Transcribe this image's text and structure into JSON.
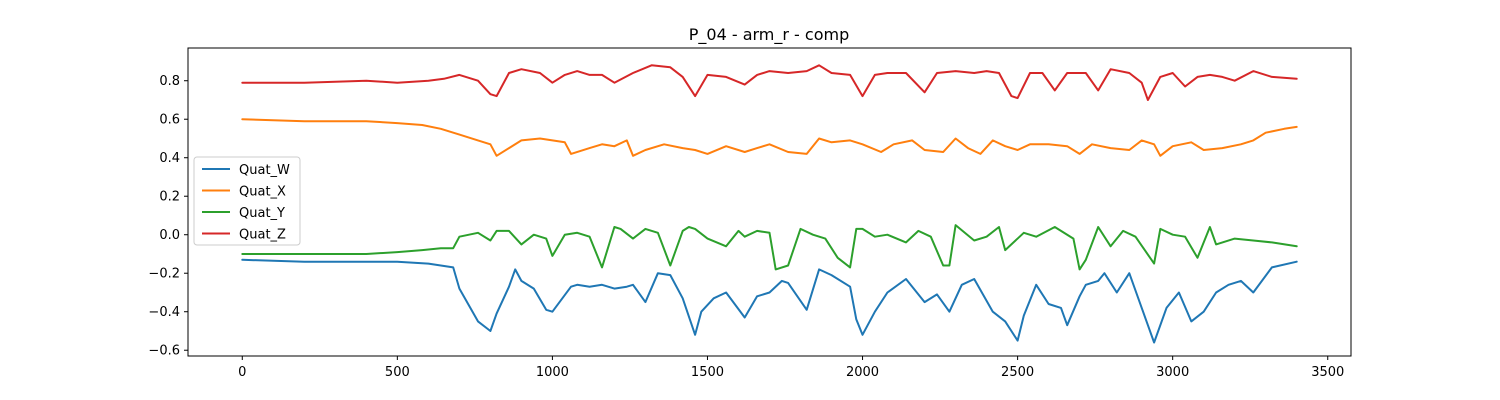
{
  "chart_data": {
    "type": "line",
    "title": "P_04 - arm_r - comp",
    "xlabel": "",
    "ylabel": "",
    "xlim": [
      -175,
      3575
    ],
    "ylim": [
      -0.63,
      0.97
    ],
    "x_ticks": [
      0,
      500,
      1000,
      1500,
      2000,
      2500,
      3000,
      3500
    ],
    "y_ticks": [
      -0.6,
      -0.4,
      -0.2,
      0.0,
      0.2,
      0.4,
      0.6,
      0.8
    ],
    "x_tick_labels": [
      "0",
      "500",
      "1000",
      "1500",
      "2000",
      "2500",
      "3000",
      "3500"
    ],
    "y_tick_labels": [
      "−0.6",
      "−0.4",
      "−0.2",
      "0.0",
      "0.2",
      "0.4",
      "0.6",
      "0.8"
    ],
    "grid": false,
    "legend_position": "center-left",
    "series": [
      {
        "name": "Quat_W",
        "color": "#1f77b4",
        "x": [
          0,
          200,
          400,
          500,
          600,
          680,
          700,
          760,
          800,
          820,
          860,
          880,
          900,
          940,
          980,
          1000,
          1060,
          1080,
          1120,
          1160,
          1200,
          1240,
          1260,
          1300,
          1340,
          1380,
          1420,
          1460,
          1480,
          1520,
          1560,
          1620,
          1660,
          1700,
          1740,
          1760,
          1820,
          1860,
          1900,
          1960,
          1980,
          2000,
          2040,
          2080,
          2140,
          2200,
          2240,
          2280,
          2320,
          2360,
          2420,
          2460,
          2500,
          2520,
          2560,
          2600,
          2640,
          2660,
          2700,
          2720,
          2760,
          2780,
          2820,
          2860,
          2920,
          2940,
          2980,
          3020,
          3060,
          3100,
          3140,
          3180,
          3220,
          3260,
          3320,
          3400
        ],
        "y": [
          -0.13,
          -0.14,
          -0.14,
          -0.14,
          -0.15,
          -0.17,
          -0.28,
          -0.45,
          -0.5,
          -0.41,
          -0.27,
          -0.18,
          -0.24,
          -0.28,
          -0.39,
          -0.4,
          -0.27,
          -0.26,
          -0.27,
          -0.26,
          -0.28,
          -0.27,
          -0.26,
          -0.35,
          -0.2,
          -0.21,
          -0.33,
          -0.52,
          -0.4,
          -0.33,
          -0.3,
          -0.43,
          -0.32,
          -0.3,
          -0.24,
          -0.25,
          -0.39,
          -0.18,
          -0.21,
          -0.27,
          -0.44,
          -0.52,
          -0.4,
          -0.3,
          -0.23,
          -0.35,
          -0.31,
          -0.4,
          -0.26,
          -0.23,
          -0.4,
          -0.45,
          -0.55,
          -0.42,
          -0.26,
          -0.36,
          -0.38,
          -0.47,
          -0.32,
          -0.26,
          -0.24,
          -0.2,
          -0.3,
          -0.2,
          -0.47,
          -0.56,
          -0.38,
          -0.3,
          -0.45,
          -0.4,
          -0.3,
          -0.26,
          -0.24,
          -0.3,
          -0.17,
          -0.14
        ]
      },
      {
        "name": "Quat_X",
        "color": "#ff7f0e",
        "x": [
          0,
          200,
          400,
          500,
          580,
          640,
          700,
          760,
          800,
          820,
          860,
          900,
          960,
          1000,
          1040,
          1060,
          1120,
          1160,
          1200,
          1240,
          1260,
          1300,
          1360,
          1420,
          1460,
          1500,
          1560,
          1620,
          1660,
          1700,
          1760,
          1820,
          1860,
          1900,
          1960,
          2000,
          2060,
          2100,
          2160,
          2200,
          2260,
          2300,
          2340,
          2380,
          2420,
          2460,
          2500,
          2540,
          2600,
          2660,
          2700,
          2740,
          2800,
          2860,
          2900,
          2940,
          2960,
          3000,
          3060,
          3100,
          3160,
          3220,
          3260,
          3300,
          3360,
          3400
        ],
        "y": [
          0.6,
          0.59,
          0.59,
          0.58,
          0.57,
          0.55,
          0.52,
          0.49,
          0.47,
          0.41,
          0.45,
          0.49,
          0.5,
          0.49,
          0.48,
          0.42,
          0.45,
          0.47,
          0.46,
          0.49,
          0.41,
          0.44,
          0.47,
          0.45,
          0.44,
          0.42,
          0.46,
          0.43,
          0.45,
          0.47,
          0.43,
          0.42,
          0.5,
          0.48,
          0.49,
          0.47,
          0.43,
          0.47,
          0.49,
          0.44,
          0.43,
          0.5,
          0.45,
          0.42,
          0.49,
          0.46,
          0.44,
          0.47,
          0.47,
          0.46,
          0.42,
          0.47,
          0.45,
          0.44,
          0.49,
          0.47,
          0.41,
          0.46,
          0.48,
          0.44,
          0.45,
          0.47,
          0.49,
          0.53,
          0.55,
          0.56
        ]
      },
      {
        "name": "Quat_Y",
        "color": "#2ca02c",
        "x": [
          0,
          200,
          400,
          500,
          580,
          640,
          680,
          700,
          760,
          800,
          820,
          860,
          900,
          940,
          980,
          1000,
          1040,
          1080,
          1120,
          1160,
          1200,
          1220,
          1260,
          1300,
          1340,
          1380,
          1420,
          1440,
          1460,
          1500,
          1560,
          1600,
          1620,
          1660,
          1700,
          1720,
          1760,
          1800,
          1840,
          1880,
          1920,
          1960,
          1980,
          2000,
          2040,
          2080,
          2140,
          2180,
          2220,
          2260,
          2280,
          2300,
          2360,
          2400,
          2440,
          2460,
          2520,
          2560,
          2620,
          2680,
          2700,
          2720,
          2760,
          2800,
          2840,
          2880,
          2940,
          2960,
          3000,
          3040,
          3080,
          3120,
          3140,
          3200,
          3260,
          3320,
          3400
        ],
        "y": [
          -0.1,
          -0.1,
          -0.1,
          -0.09,
          -0.08,
          -0.07,
          -0.07,
          -0.01,
          0.01,
          -0.03,
          0.02,
          0.02,
          -0.05,
          0.0,
          -0.02,
          -0.11,
          0.0,
          0.01,
          -0.01,
          -0.17,
          0.04,
          0.03,
          -0.02,
          0.03,
          0.01,
          -0.16,
          0.02,
          0.04,
          0.03,
          -0.02,
          -0.06,
          0.02,
          -0.01,
          0.02,
          0.01,
          -0.18,
          -0.16,
          0.03,
          0.0,
          -0.02,
          -0.12,
          -0.17,
          0.03,
          0.03,
          -0.01,
          0.0,
          -0.04,
          0.02,
          -0.01,
          -0.16,
          -0.16,
          0.05,
          -0.03,
          -0.01,
          0.04,
          -0.08,
          0.01,
          -0.01,
          0.04,
          -0.02,
          -0.18,
          -0.13,
          0.04,
          -0.06,
          0.02,
          -0.01,
          -0.15,
          0.03,
          0.0,
          -0.01,
          -0.12,
          0.04,
          -0.05,
          -0.02,
          -0.03,
          -0.04,
          -0.06
        ]
      },
      {
        "name": "Quat_Z",
        "color": "#d62728",
        "x": [
          0,
          200,
          400,
          500,
          600,
          650,
          700,
          760,
          800,
          820,
          860,
          900,
          960,
          1000,
          1040,
          1080,
          1120,
          1160,
          1200,
          1260,
          1320,
          1380,
          1420,
          1460,
          1500,
          1560,
          1620,
          1660,
          1700,
          1760,
          1820,
          1860,
          1900,
          1960,
          2000,
          2040,
          2080,
          2140,
          2200,
          2240,
          2300,
          2360,
          2400,
          2440,
          2480,
          2500,
          2540,
          2580,
          2620,
          2660,
          2720,
          2760,
          2800,
          2860,
          2900,
          2920,
          2960,
          3000,
          3040,
          3080,
          3120,
          3160,
          3200,
          3260,
          3320,
          3400
        ],
        "y": [
          0.79,
          0.79,
          0.8,
          0.79,
          0.8,
          0.81,
          0.83,
          0.8,
          0.73,
          0.72,
          0.84,
          0.86,
          0.84,
          0.79,
          0.83,
          0.85,
          0.83,
          0.83,
          0.79,
          0.84,
          0.88,
          0.87,
          0.82,
          0.72,
          0.83,
          0.82,
          0.78,
          0.83,
          0.85,
          0.84,
          0.85,
          0.88,
          0.84,
          0.83,
          0.72,
          0.83,
          0.84,
          0.84,
          0.74,
          0.84,
          0.85,
          0.84,
          0.85,
          0.84,
          0.72,
          0.71,
          0.84,
          0.84,
          0.75,
          0.84,
          0.84,
          0.75,
          0.86,
          0.84,
          0.79,
          0.7,
          0.82,
          0.84,
          0.77,
          0.82,
          0.83,
          0.82,
          0.8,
          0.85,
          0.82,
          0.81
        ]
      }
    ]
  }
}
